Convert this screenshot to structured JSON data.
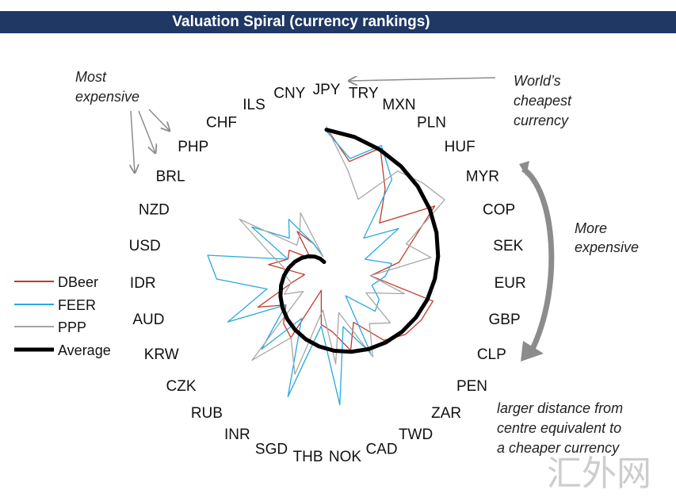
{
  "title": "Valuation Spiral (currency rankings)",
  "chart_data": {
    "type": "radar-spiral",
    "title": "Valuation Spiral (currency rankings)",
    "categories": [
      "JPY",
      "TRY",
      "MXN",
      "PLN",
      "HUF",
      "MYR",
      "COP",
      "SEK",
      "EUR",
      "GBP",
      "CLP",
      "PEN",
      "ZAR",
      "TWD",
      "CAD",
      "NOK",
      "THB",
      "SGD",
      "INR",
      "RUB",
      "CZK",
      "KRW",
      "AUD",
      "IDR",
      "USD",
      "NZD",
      "BRL",
      "PHP",
      "CHF",
      "ILS",
      "CNY"
    ],
    "series": [
      {
        "name": "DBeer",
        "color": "#c0392b",
        "values": [
          0.99,
          0.78,
          0.93,
          0.7,
          0.5,
          0.87,
          0.62,
          0.5,
          0.3,
          0.75,
          0.72,
          0.68,
          0.6,
          0.38,
          0.55,
          0.4,
          0.35,
          0.12,
          0.5,
          0.45,
          0.35,
          0.52,
          0.24,
          0.15,
          0.4,
          0.28,
          0.3,
          0.15,
          0.35,
          0.22,
          0.12
        ]
      },
      {
        "name": "FEER",
        "color": "#29a8df",
        "values": [
          0.97,
          0.8,
          0.95,
          0.78,
          0.35,
          0.58,
          0.28,
          0.45,
          0.4,
          0.32,
          0.4,
          0.42,
          0.2,
          0.62,
          0.38,
          0.9,
          0.36,
          0.88,
          0.35,
          0.68,
          0.35,
          0.75,
          0.42,
          0.75,
          0.82,
          0.28,
          0.6,
          0.35,
          0.45,
          0.22,
          0.12
        ]
      },
      {
        "name": "PPP",
        "color": "#a6a6a6",
        "values": [
          1.0,
          0.72,
          0.55,
          0.85,
          0.9,
          0.95,
          0.58,
          0.72,
          0.3,
          0.55,
          0.3,
          0.55,
          0.45,
          0.65,
          0.28,
          0.62,
          0.25,
          0.72,
          0.5,
          0.78,
          0.2,
          0.32,
          0.25,
          0.28,
          0.3,
          0.42,
          0.7,
          0.28,
          0.32,
          0.45,
          0.12
        ]
      },
      {
        "name": "Average",
        "color": "#000000",
        "values": [
          0.98,
          0.95,
          0.92,
          0.89,
          0.86,
          0.83,
          0.8,
          0.77,
          0.74,
          0.71,
          0.68,
          0.65,
          0.62,
          0.59,
          0.56,
          0.53,
          0.5,
          0.47,
          0.44,
          0.41,
          0.38,
          0.35,
          0.32,
          0.29,
          0.26,
          0.23,
          0.2,
          0.17,
          0.14,
          0.11,
          0.08
        ]
      }
    ],
    "scale": "distance from centre = rank (larger = cheaper currency)",
    "legend_position": "left"
  },
  "annotations": {
    "most_expensive": [
      "Most",
      "expensive"
    ],
    "worlds_cheapest": [
      "World’s",
      "cheapest",
      "currency"
    ],
    "more_expensive": [
      "More",
      "expensive"
    ],
    "larger_distance": [
      "larger distance  from",
      "centre equivalent to",
      "a cheaper currency"
    ]
  },
  "watermark": "汇外网",
  "colors": {
    "title_bg": "#1f3864",
    "arrow_gray": "#8c8c8c"
  }
}
